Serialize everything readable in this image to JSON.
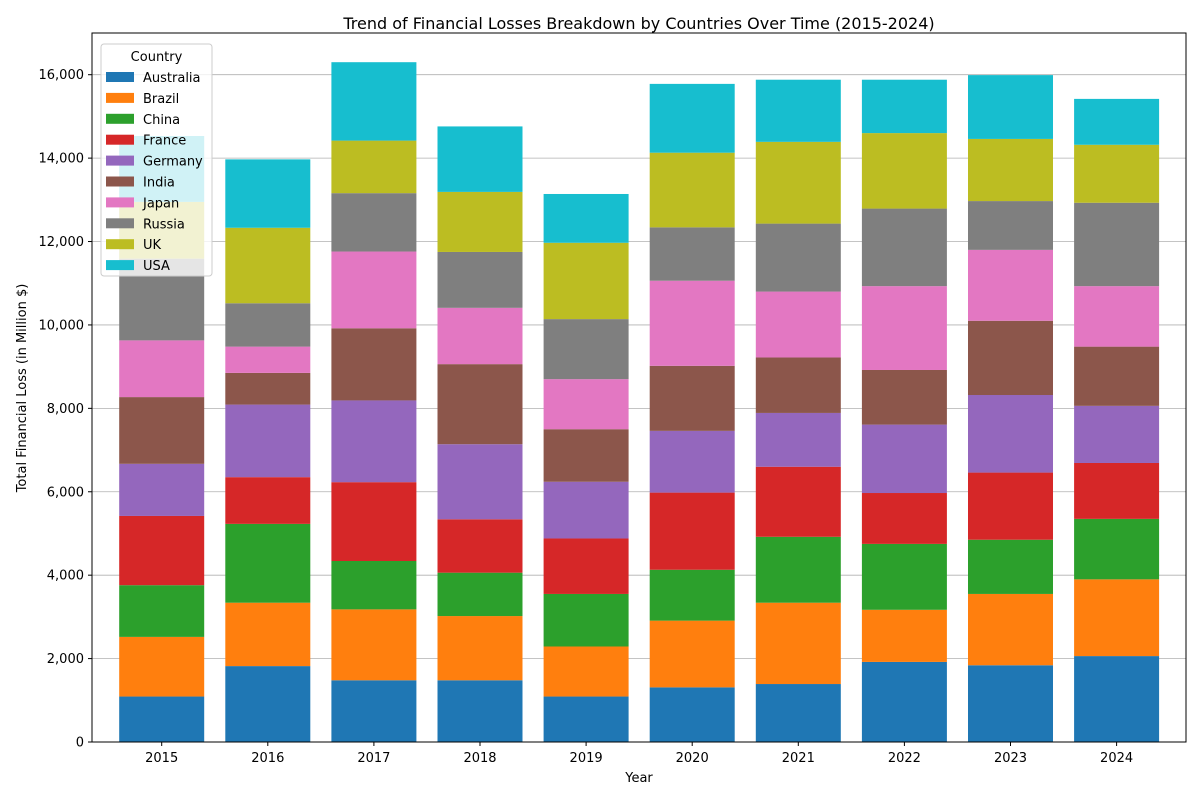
{
  "chart_data": {
    "type": "bar",
    "stacked": true,
    "title": "Trend of Financial Losses Breakdown by Countries Over Time (2015-2024)",
    "xlabel": "Year",
    "ylabel": "Total Financial Loss (in Million $)",
    "ylim": [
      0,
      17000
    ],
    "yticks": [
      0,
      2000,
      4000,
      6000,
      8000,
      10000,
      12000,
      14000,
      16000
    ],
    "ytick_labels": [
      "0",
      "2,000",
      "4,000",
      "6,000",
      "8,000",
      "10,000",
      "12,000",
      "14,000",
      "16,000"
    ],
    "grid": "y-major",
    "legend": {
      "title": "Country",
      "placement": "top-left"
    },
    "categories": [
      "2015",
      "2016",
      "2017",
      "2018",
      "2019",
      "2020",
      "2021",
      "2022",
      "2023",
      "2024"
    ],
    "series": [
      {
        "name": "Australia",
        "color": "#1f77b4",
        "values": [
          1090,
          1820,
          1480,
          1480,
          1090,
          1310,
          1390,
          1920,
          1840,
          2060
        ]
      },
      {
        "name": "Brazil",
        "color": "#ff7f0e",
        "values": [
          1430,
          1520,
          1700,
          1540,
          1200,
          1600,
          1950,
          1250,
          1710,
          1840
        ]
      },
      {
        "name": "China",
        "color": "#2ca02c",
        "values": [
          1240,
          1890,
          1160,
          1040,
          1260,
          1220,
          1580,
          1580,
          1300,
          1450
        ]
      },
      {
        "name": "France",
        "color": "#d62728",
        "values": [
          1660,
          1120,
          1890,
          1280,
          1330,
          1850,
          1680,
          1220,
          1610,
          1340
        ]
      },
      {
        "name": "Germany",
        "color": "#9467bd",
        "values": [
          1250,
          1740,
          1960,
          1800,
          1360,
          1480,
          1290,
          1640,
          1860,
          1370
        ]
      },
      {
        "name": "India",
        "color": "#8c564b",
        "values": [
          1600,
          760,
          1730,
          1920,
          1260,
          1560,
          1330,
          1310,
          1780,
          1420
        ]
      },
      {
        "name": "Japan",
        "color": "#e377c2",
        "values": [
          1360,
          630,
          1840,
          1350,
          1200,
          2040,
          1580,
          2010,
          1700,
          1450
        ]
      },
      {
        "name": "Russia",
        "color": "#7f7f7f",
        "values": [
          1960,
          1040,
          1400,
          1340,
          1440,
          1280,
          1630,
          1860,
          1170,
          2000
        ]
      },
      {
        "name": "UK",
        "color": "#bcbd22",
        "values": [
          1360,
          1810,
          1260,
          1440,
          1830,
          1790,
          1960,
          1810,
          1490,
          1390
        ]
      },
      {
        "name": "USA",
        "color": "#17becf",
        "values": [
          1580,
          1640,
          1880,
          1570,
          1170,
          1650,
          1490,
          1280,
          1530,
          1100
        ]
      }
    ]
  }
}
